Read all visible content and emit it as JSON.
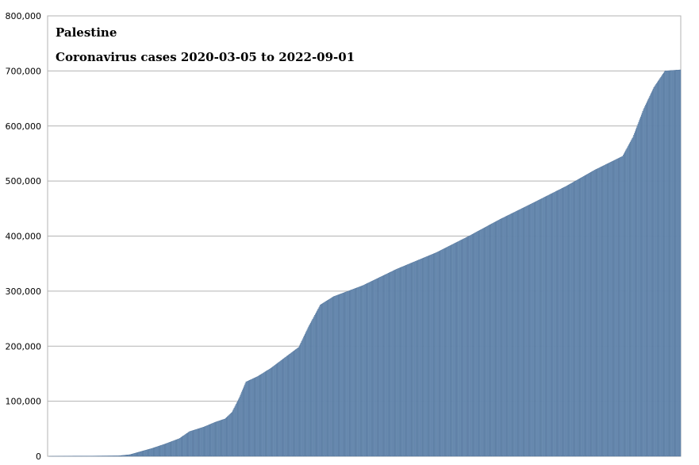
{
  "chart_data": {
    "type": "bar",
    "title": "Palestine",
    "subtitle": "Coronavirus cases 2020-03-05 to 2022-09-01",
    "xlabel": "",
    "ylabel": "",
    "x_start": "2020-03-05",
    "x_end": "2022-09-01",
    "ylim": [
      0,
      800000
    ],
    "yticks": [
      {
        "value": 0,
        "label": "0"
      },
      {
        "value": 100000,
        "label": "100,000"
      },
      {
        "value": 200000,
        "label": "200,000"
      },
      {
        "value": 300000,
        "label": "300,000"
      },
      {
        "value": 400000,
        "label": "400,000"
      },
      {
        "value": 500000,
        "label": "500,000"
      },
      {
        "value": 600000,
        "label": "600,000"
      },
      {
        "value": 700000,
        "label": "700,000"
      },
      {
        "value": 800000,
        "label": "800,000"
      }
    ],
    "grid": true,
    "bar_color": "#7a9cc0",
    "bar_edge_color": "#4d6f96",
    "series": [
      {
        "points": [
          {
            "date": "2020-03-05",
            "value": 0
          },
          {
            "date": "2020-05-01",
            "value": 400
          },
          {
            "date": "2020-06-15",
            "value": 900
          },
          {
            "date": "2020-07-01",
            "value": 3000
          },
          {
            "date": "2020-07-15",
            "value": 8000
          },
          {
            "date": "2020-08-01",
            "value": 14000
          },
          {
            "date": "2020-08-20",
            "value": 22000
          },
          {
            "date": "2020-09-10",
            "value": 32000
          },
          {
            "date": "2020-09-25",
            "value": 45000
          },
          {
            "date": "2020-10-15",
            "value": 53000
          },
          {
            "date": "2020-11-01",
            "value": 62000
          },
          {
            "date": "2020-11-15",
            "value": 68000
          },
          {
            "date": "2020-11-25",
            "value": 80000
          },
          {
            "date": "2020-12-05",
            "value": 105000
          },
          {
            "date": "2020-12-15",
            "value": 135000
          },
          {
            "date": "2021-01-01",
            "value": 145000
          },
          {
            "date": "2021-01-20",
            "value": 160000
          },
          {
            "date": "2021-02-10",
            "value": 180000
          },
          {
            "date": "2021-03-01",
            "value": 198000
          },
          {
            "date": "2021-03-15",
            "value": 235000
          },
          {
            "date": "2021-04-01",
            "value": 275000
          },
          {
            "date": "2021-04-20",
            "value": 290000
          },
          {
            "date": "2021-06-01",
            "value": 310000
          },
          {
            "date": "2021-07-20",
            "value": 340000
          },
          {
            "date": "2021-09-15",
            "value": 370000
          },
          {
            "date": "2021-11-01",
            "value": 400000
          },
          {
            "date": "2021-12-15",
            "value": 430000
          },
          {
            "date": "2022-02-01",
            "value": 460000
          },
          {
            "date": "2022-03-20",
            "value": 490000
          },
          {
            "date": "2022-05-01",
            "value": 520000
          },
          {
            "date": "2022-06-10",
            "value": 545000
          },
          {
            "date": "2022-06-25",
            "value": 580000
          },
          {
            "date": "2022-07-10",
            "value": 630000
          },
          {
            "date": "2022-07-25",
            "value": 670000
          },
          {
            "date": "2022-08-10",
            "value": 700000
          },
          {
            "date": "2022-09-01",
            "value": 702000
          }
        ]
      }
    ]
  }
}
